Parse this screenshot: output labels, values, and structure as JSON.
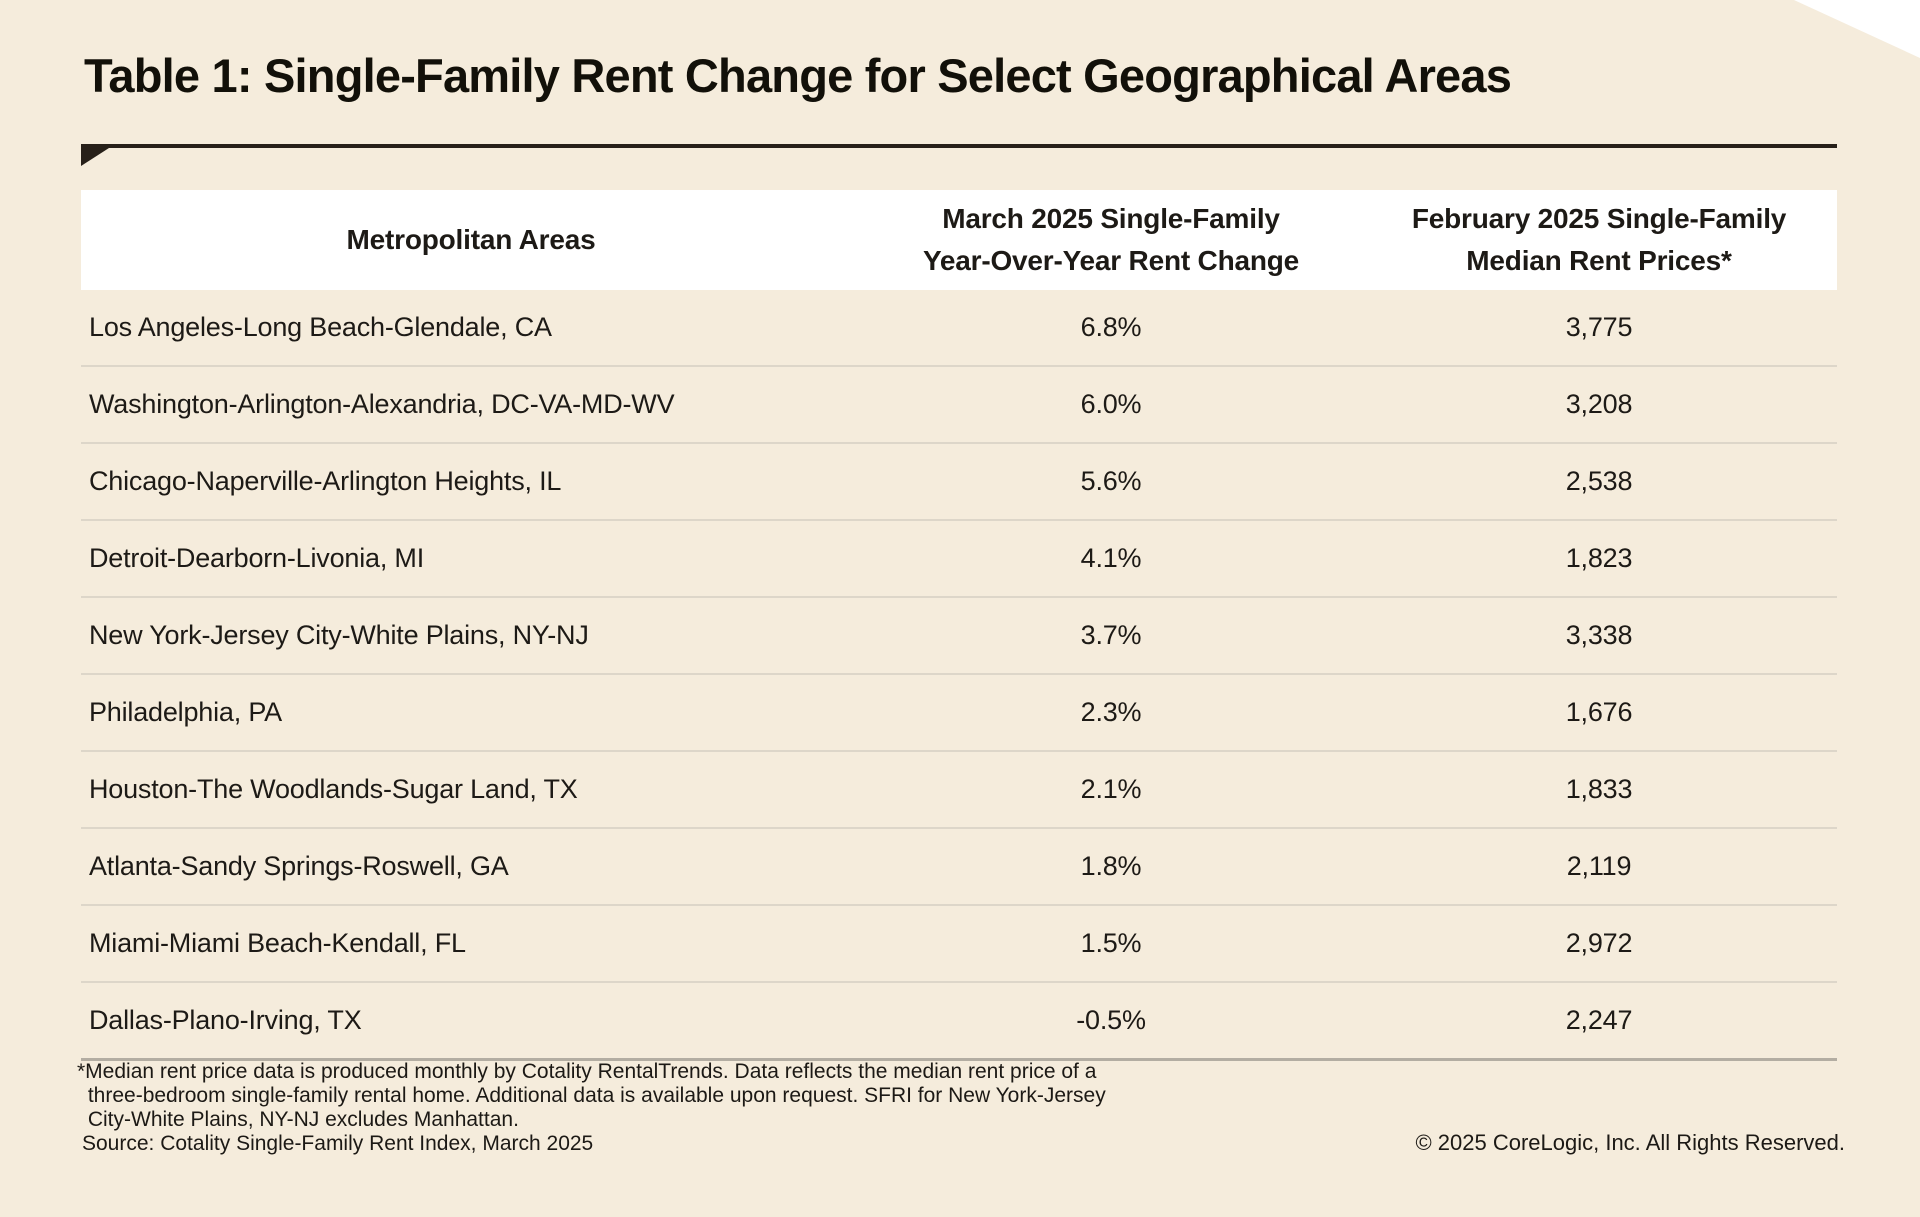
{
  "page": {
    "title": "Table 1: Single-Family Rent Change for Select Geographical Areas"
  },
  "table": {
    "columns": [
      "Metropolitan Areas",
      "March 2025 Single-Family\nYear-Over-Year Rent Change",
      "February 2025 Single-Family\nMedian Rent Prices*"
    ],
    "rows": [
      {
        "area": "Los Angeles-Long Beach-Glendale, CA",
        "rent_change": "6.8%",
        "median_rent": "3,775"
      },
      {
        "area": "Washington-Arlington-Alexandria, DC-VA-MD-WV",
        "rent_change": "6.0%",
        "median_rent": "3,208"
      },
      {
        "area": "Chicago-Naperville-Arlington Heights, IL",
        "rent_change": "5.6%",
        "median_rent": "2,538"
      },
      {
        "area": "Detroit-Dearborn-Livonia, MI",
        "rent_change": "4.1%",
        "median_rent": "1,823"
      },
      {
        "area": "New York-Jersey City-White Plains, NY-NJ",
        "rent_change": "3.7%",
        "median_rent": "3,338"
      },
      {
        "area": "Philadelphia, PA",
        "rent_change": "2.3%",
        "median_rent": "1,676"
      },
      {
        "area": "Houston-The Woodlands-Sugar Land, TX",
        "rent_change": "2.1%",
        "median_rent": "1,833"
      },
      {
        "area": "Atlanta-Sandy Springs-Roswell, GA",
        "rent_change": "1.8%",
        "median_rent": "2,119"
      },
      {
        "area": "Miami-Miami Beach-Kendall, FL",
        "rent_change": "1.5%",
        "median_rent": "2,972"
      },
      {
        "area": "Dallas-Plano-Irving, TX",
        "rent_change": "-0.5%",
        "median_rent": "2,247"
      }
    ]
  },
  "footnote": "*Median rent price data is produced monthly by Cotality RentalTrends. Data reflects the median rent price of a\n three-bedroom single-family rental home. Additional data is available upon request. SFRI for New York-Jersey\n City-White Plains, NY-NJ excludes Manhattan.",
  "source": "Source: Cotality Single-Family Rent Index, March 2025",
  "copyright": "© 2025 CoreLogic, Inc. All Rights Reserved.",
  "colors": {
    "page_background": "#f5ecdc",
    "header_row_background": "#ffffff",
    "title_rule": "#272019",
    "row_divider": "#ddd6c9",
    "table_bottom_divider": "#b3ada2",
    "text": "#1d1a16"
  },
  "chart_data": {
    "type": "table",
    "title": "Table 1: Single-Family Rent Change for Select Geographical Areas",
    "columns": [
      "Metropolitan Areas",
      "March 2025 Single-Family Year-Over-Year Rent Change",
      "February 2025 Single-Family Median Rent Prices*"
    ],
    "categories": [
      "Los Angeles-Long Beach-Glendale, CA",
      "Washington-Arlington-Alexandria, DC-VA-MD-WV",
      "Chicago-Naperville-Arlington Heights, IL",
      "Detroit-Dearborn-Livonia, MI",
      "New York-Jersey City-White Plains, NY-NJ",
      "Philadelphia, PA",
      "Houston-The Woodlands-Sugar Land, TX",
      "Atlanta-Sandy Springs-Roswell, GA",
      "Miami-Miami Beach-Kendall, FL",
      "Dallas-Plano-Irving, TX"
    ],
    "series": [
      {
        "name": "March 2025 Single-Family Year-Over-Year Rent Change (%)",
        "values": [
          6.8,
          6.0,
          5.6,
          4.1,
          3.7,
          2.3,
          2.1,
          1.8,
          1.5,
          -0.5
        ]
      },
      {
        "name": "February 2025 Single-Family Median Rent Prices ($)",
        "values": [
          3775,
          3208,
          2538,
          1823,
          3338,
          1676,
          1833,
          2119,
          2972,
          2247
        ]
      }
    ]
  }
}
